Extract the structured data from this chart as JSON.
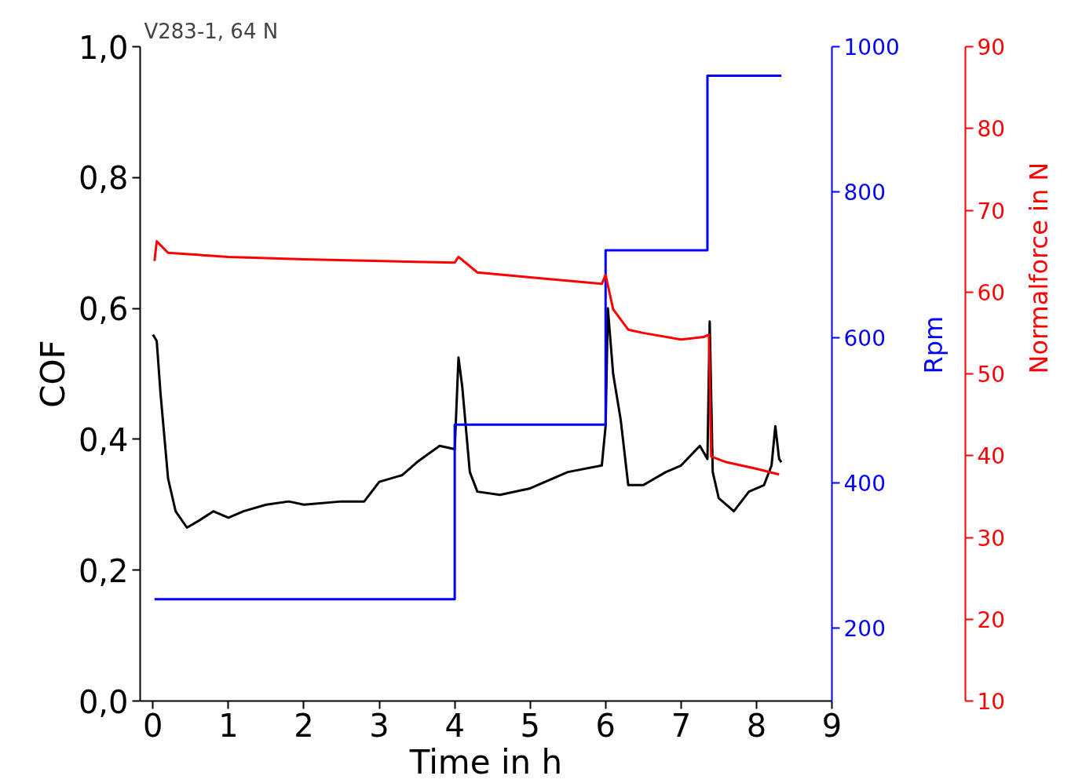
{
  "chart_data": {
    "type": "line",
    "title": "V283-1, 64 N",
    "xlabel": "Time in h",
    "ylabel": "COF",
    "y2label": "Rpm",
    "y3label": "Normalforce in N",
    "xlim": [
      -0.17,
      9
    ],
    "xticks": [
      0,
      1,
      2,
      3,
      4,
      5,
      6,
      7,
      8,
      9
    ],
    "ylim": [
      0.0,
      1.0
    ],
    "yticks": [
      {
        "value": 0.0,
        "label": "0,0"
      },
      {
        "value": 0.2,
        "label": "0,2"
      },
      {
        "value": 0.4,
        "label": "0,4"
      },
      {
        "value": 0.6,
        "label": "0,6"
      },
      {
        "value": 0.8,
        "label": "0,8"
      },
      {
        "value": 1.0,
        "label": "1,0"
      }
    ],
    "y2lim": [
      100,
      1000
    ],
    "y2ticks": [
      200,
      400,
      600,
      800,
      1000
    ],
    "y3lim": [
      10,
      90
    ],
    "y3ticks": [
      10,
      20,
      30,
      40,
      50,
      60,
      70,
      80,
      90
    ],
    "grid": false,
    "series": [
      {
        "color": "#000000",
        "x": [
          0.0,
          0.05,
          0.1,
          0.2,
          0.3,
          0.45,
          0.6,
          0.8,
          1.0,
          1.2,
          1.5,
          1.8,
          2.0,
          2.5,
          2.8,
          3.0,
          3.3,
          3.5,
          3.8,
          4.0,
          4.05,
          4.1,
          4.2,
          4.3,
          4.6,
          5.0,
          5.5,
          5.95,
          6.0,
          6.03,
          6.1,
          6.2,
          6.3,
          6.5,
          6.8,
          7.0,
          7.25,
          7.35,
          7.38,
          7.42,
          7.5,
          7.7,
          7.9,
          8.1,
          8.2,
          8.25,
          8.3,
          8.33
        ],
        "values": [
          0.56,
          0.55,
          0.47,
          0.34,
          0.29,
          0.265,
          0.275,
          0.29,
          0.28,
          0.29,
          0.3,
          0.305,
          0.3,
          0.305,
          0.305,
          0.335,
          0.345,
          0.365,
          0.39,
          0.385,
          0.525,
          0.48,
          0.35,
          0.32,
          0.315,
          0.325,
          0.35,
          0.36,
          0.42,
          0.6,
          0.5,
          0.43,
          0.33,
          0.33,
          0.35,
          0.36,
          0.39,
          0.37,
          0.58,
          0.35,
          0.31,
          0.29,
          0.32,
          0.33,
          0.36,
          0.42,
          0.37,
          0.365
        ]
      },
      {
        "type": "step",
        "axis": "y2",
        "color": "#0000ff",
        "x": [
          0.02,
          4.0,
          6.0,
          7.35,
          8.33
        ],
        "values": [
          240,
          480,
          720,
          960,
          960
        ]
      },
      {
        "type": "line",
        "axis": "y3",
        "color": "#ff0000",
        "x": [
          0.02,
          0.05,
          0.2,
          1.0,
          2.0,
          3.5,
          4.0,
          4.05,
          4.3,
          5.0,
          5.95,
          6.0,
          6.1,
          6.3,
          6.5,
          7.0,
          7.3,
          7.37,
          7.4,
          7.6,
          8.0,
          8.3
        ],
        "values": [
          63.8,
          66.2,
          64.8,
          64.3,
          64.0,
          63.7,
          63.6,
          64.3,
          62.4,
          61.8,
          61.0,
          62.1,
          57.9,
          55.4,
          55.0,
          54.2,
          54.5,
          54.8,
          39.9,
          39.2,
          38.4,
          37.7
        ]
      }
    ]
  }
}
